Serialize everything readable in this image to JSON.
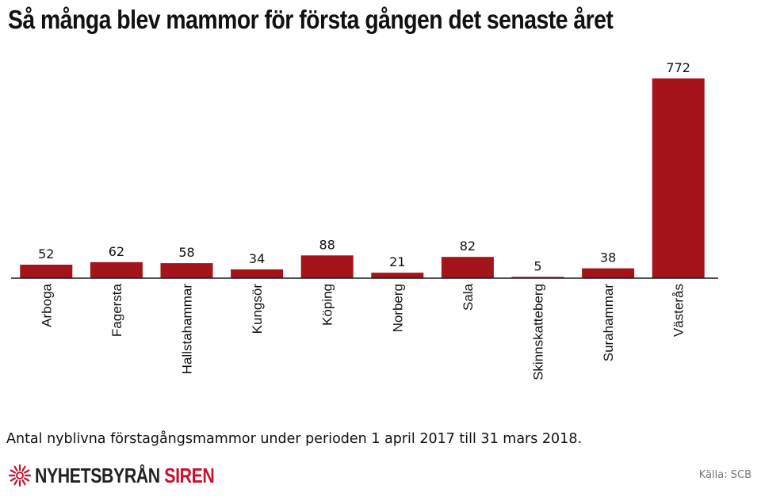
{
  "title": "Så många blev mammor för första gången det senaste året",
  "note": "Antal nyblivna förstagångsmammor under perioden 1 april 2017 till 31 mars 2018.",
  "brand": {
    "logo_icon": "sunburst-icon",
    "name_part1": "NYHETSBYRÅN",
    "name_part2": "SIREN",
    "accent_color": "#c8102e"
  },
  "source": "Källa: SCB",
  "chart_data": {
    "type": "bar",
    "title": "Så många blev mammor för första gången det senaste året",
    "categories": [
      "Arboga",
      "Fagersta",
      "Hallstahammar",
      "Kungsör",
      "Köping",
      "Norberg",
      "Sala",
      "Skinnskatteberg",
      "Surahammar",
      "Västerås"
    ],
    "values": [
      52,
      62,
      58,
      34,
      88,
      21,
      82,
      5,
      38,
      772
    ],
    "bar_color": "#a3151b",
    "xlabel": "",
    "ylabel": "",
    "ylim": [
      0,
      772
    ],
    "grid": false,
    "show_data_labels": true,
    "category_label_rotation": -90
  }
}
